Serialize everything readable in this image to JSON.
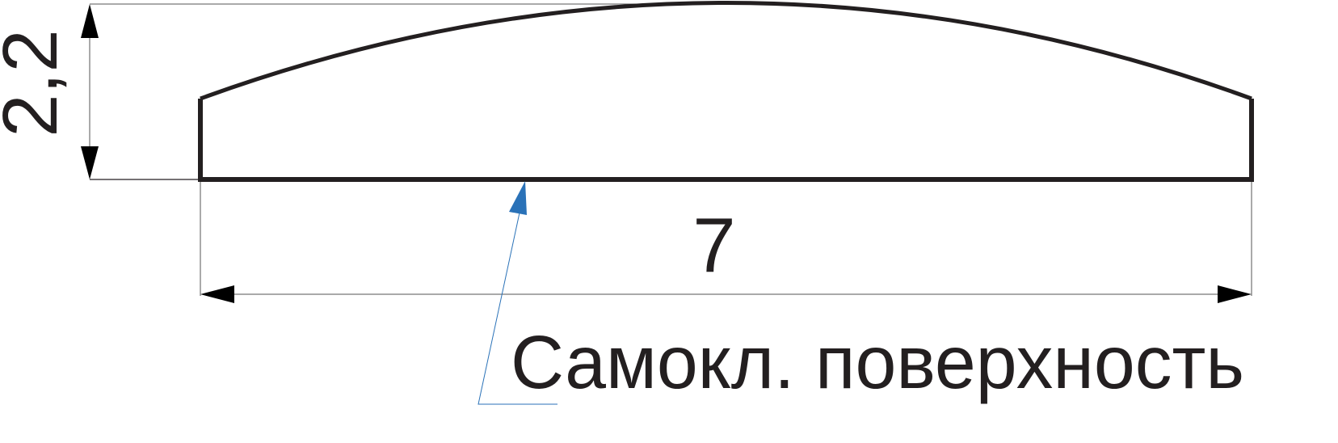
{
  "drawing": {
    "height_dimension": "2,2",
    "width_dimension": "7",
    "leader_label": "Самокл. поверхность"
  },
  "colors": {
    "outline": "#231f20",
    "leader": "#2a72b8",
    "background": "#ffffff"
  }
}
